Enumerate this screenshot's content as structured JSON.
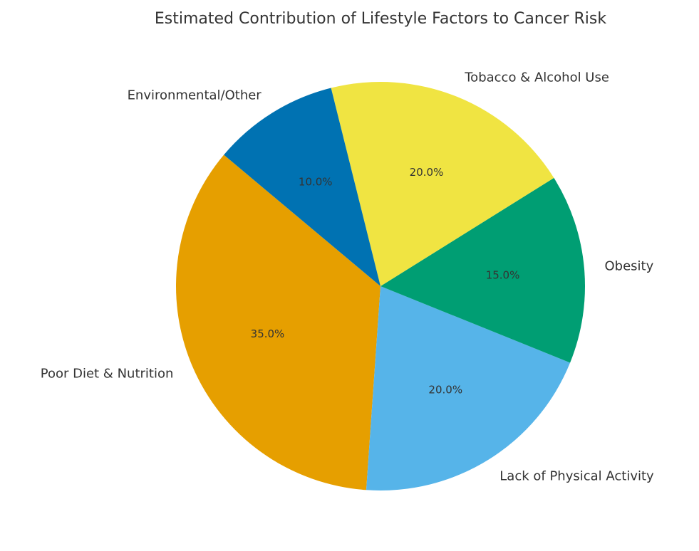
{
  "chart_data": {
    "type": "pie",
    "title": "Estimated Contribution of Lifestyle Factors to Cancer Risk",
    "start_angle_deg": 140,
    "direction": "counterclockwise",
    "slices": [
      {
        "label": "Poor Diet & Nutrition",
        "value": 35,
        "pct_label": "35.0%",
        "color": "#E69F00"
      },
      {
        "label": "Lack of Physical Activity",
        "value": 20,
        "pct_label": "20.0%",
        "color": "#56B4E9"
      },
      {
        "label": "Obesity",
        "value": 15,
        "pct_label": "15.0%",
        "color": "#009E73"
      },
      {
        "label": "Tobacco & Alcohol Use",
        "value": 20,
        "pct_label": "20.0%",
        "color": "#F0E442"
      },
      {
        "label": "Environmental/Other",
        "value": 10,
        "pct_label": "10.0%",
        "color": "#0072B2"
      }
    ]
  }
}
